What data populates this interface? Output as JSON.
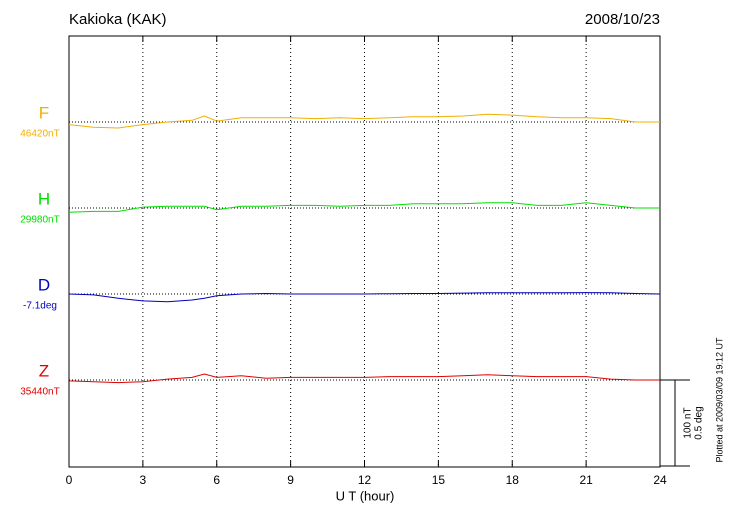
{
  "chart_data": {
    "type": "magnetogram",
    "title": "Kakioka (KAK)",
    "date": "2008/10/23",
    "xlabel": "U T (hour)",
    "xlim": [
      0,
      24
    ],
    "xticks": [
      0,
      3,
      6,
      9,
      12,
      15,
      18,
      21,
      24
    ],
    "grid": true,
    "x": [
      0,
      1,
      2,
      3,
      4,
      5,
      5.5,
      6,
      7,
      8,
      9,
      10,
      11,
      12,
      13,
      14,
      15,
      16,
      17,
      18,
      19,
      20,
      21,
      22,
      23,
      24
    ],
    "scale": [
      {
        "value": 100,
        "label": "100 nT"
      },
      {
        "value": 0.5,
        "label": "0.5 deg"
      }
    ],
    "series": [
      {
        "name": "F",
        "color": "#f0b000",
        "baseline": {
          "value": 46420,
          "label": "46420nT"
        },
        "values": [
          46417,
          46414,
          46413,
          46417,
          46420,
          46422,
          46427,
          46421,
          46425,
          46425,
          46425,
          46424,
          46425,
          46424,
          46425,
          46426,
          46426,
          46427,
          46429,
          46428,
          46426,
          46425,
          46425,
          46424,
          46420,
          46420
        ]
      },
      {
        "name": "H",
        "color": "#00e000",
        "baseline": {
          "value": 29980,
          "label": "29980nT"
        },
        "values": [
          29975,
          29976,
          29976,
          29981,
          29982,
          29982,
          29982,
          29978,
          29982,
          29982,
          29983,
          29983,
          29982,
          29983,
          29983,
          29985,
          29985,
          29985,
          29986,
          29986,
          29983,
          29983,
          29986,
          29983,
          29980,
          29980
        ]
      },
      {
        "name": "D",
        "color": "#0000c0",
        "baseline": {
          "value": -7.1,
          "label": "-7.1deg"
        },
        "values": [
          -7.1,
          -7.105,
          -7.125,
          -7.14,
          -7.145,
          -7.135,
          -7.125,
          -7.11,
          -7.1,
          -7.097,
          -7.1,
          -7.1,
          -7.1,
          -7.1,
          -7.098,
          -7.097,
          -7.097,
          -7.095,
          -7.093,
          -7.093,
          -7.093,
          -7.093,
          -7.092,
          -7.093,
          -7.097,
          -7.1
        ]
      },
      {
        "name": "Z",
        "color": "#e00000",
        "baseline": {
          "value": 35440,
          "label": "35440nT"
        },
        "values": [
          35439,
          35438,
          35437,
          35438,
          35441,
          35443,
          35447,
          35443,
          35445,
          35442,
          35443,
          35443,
          35443,
          35443,
          35444,
          35444,
          35444,
          35445,
          35446,
          35445,
          35444,
          35444,
          35444,
          35441,
          35440,
          35440
        ]
      }
    ]
  },
  "footer": "Plotted at 2009/03/09 19:12 UT"
}
